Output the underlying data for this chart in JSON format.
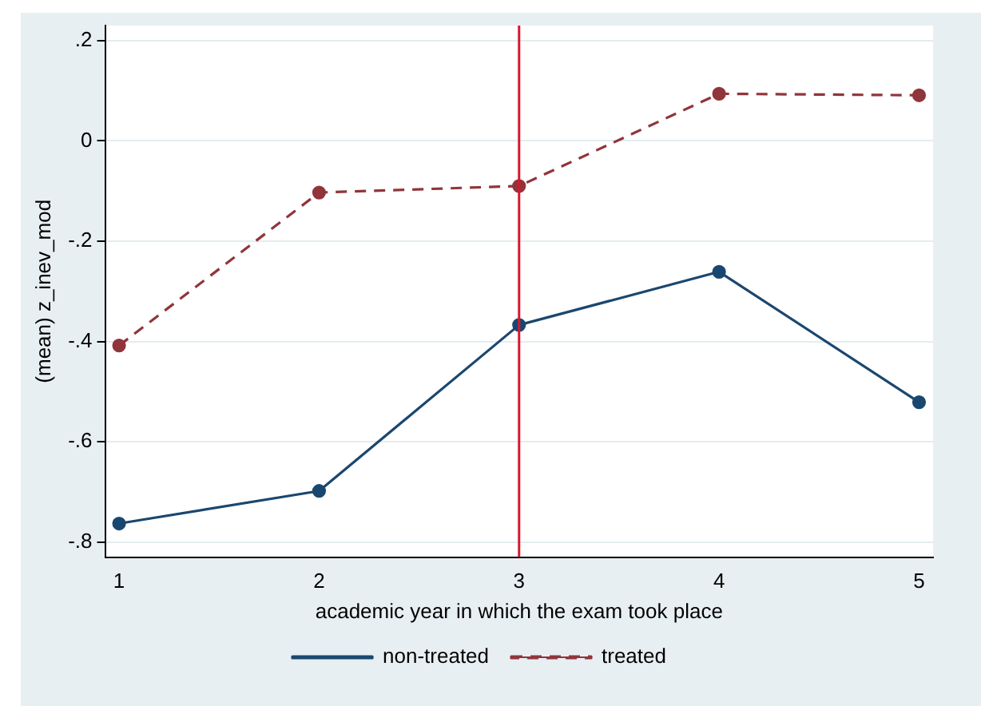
{
  "chart_data": {
    "type": "line",
    "xlabel": "academic year in which the exam took place",
    "ylabel": "(mean) z_inev_mod",
    "x": [
      1,
      2,
      3,
      4,
      5
    ],
    "series": [
      {
        "name": "non-treated",
        "color": "#1a476f",
        "values": [
          -0.763,
          -0.698,
          -0.367,
          -0.261,
          -0.521
        ],
        "line_style": "solid"
      },
      {
        "name": "treated",
        "color": "#90353b",
        "values": [
          -0.408,
          -0.103,
          -0.09,
          0.094,
          0.091
        ],
        "line_style": "dashed"
      }
    ],
    "xlim": [
      0.93,
      5.07
    ],
    "xticks": [
      1,
      2,
      3,
      4,
      5
    ],
    "ylim": [
      -0.83,
      0.23
    ],
    "yticks": [
      {
        "value": -0.8,
        "label": "-.8"
      },
      {
        "value": -0.6,
        "label": "-.6"
      },
      {
        "value": -0.4,
        "label": "-.4"
      },
      {
        "value": -0.2,
        "label": "-.2"
      },
      {
        "value": 0,
        "label": "0"
      },
      {
        "value": 0.2,
        "label": ".2"
      }
    ],
    "ref_lines": [
      {
        "axis": "x",
        "value": 3,
        "color": "#d7172f"
      }
    ],
    "grid": "y",
    "legend": "bottom",
    "marker": "circle"
  }
}
